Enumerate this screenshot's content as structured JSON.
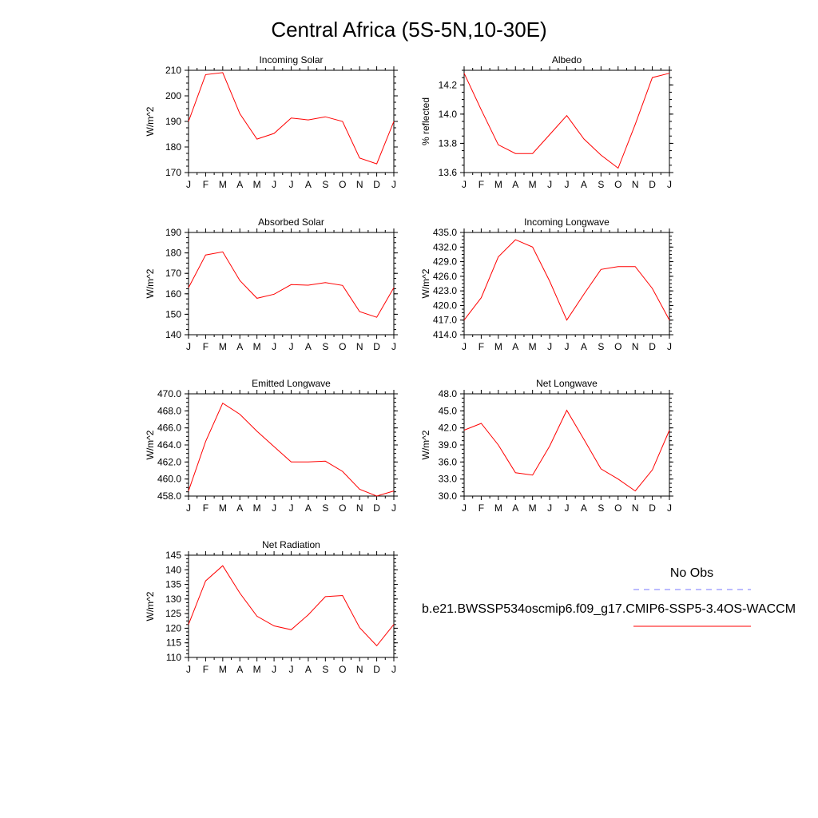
{
  "figure": {
    "title": "Central Africa (5S-5N,10-30E)",
    "series_color": "#ff0000",
    "obs_color": "#7777ff"
  },
  "legend": {
    "obs_label": "No Obs",
    "model_label": "b.e21.BWSSP534oscmip6.f09_g17.CMIP6-SSP5-3.4OS-WACCM"
  },
  "chart_data": [
    {
      "type": "line",
      "title": "Incoming Solar",
      "ylabel": "W/m^2",
      "categories": [
        "J",
        "F",
        "M",
        "A",
        "M",
        "J",
        "J",
        "A",
        "S",
        "O",
        "N",
        "D",
        "J"
      ],
      "values": [
        190.0,
        208.3,
        209.1,
        193.0,
        183.1,
        185.3,
        191.3,
        190.6,
        191.8,
        190.0,
        175.7,
        173.4,
        190.0
      ],
      "ylim": [
        170,
        210
      ],
      "yticks": [
        170,
        180,
        190,
        200,
        210
      ],
      "ytick_labels": [
        "170",
        "180",
        "190",
        "200",
        "210"
      ],
      "grid": false
    },
    {
      "type": "line",
      "title": "Albedo",
      "ylabel": "% reflected",
      "categories": [
        "J",
        "F",
        "M",
        "A",
        "M",
        "J",
        "J",
        "A",
        "S",
        "O",
        "N",
        "D",
        "J"
      ],
      "values": [
        14.28,
        14.03,
        13.79,
        13.73,
        13.73,
        13.86,
        13.99,
        13.83,
        13.72,
        13.63,
        13.93,
        14.25,
        14.28
      ],
      "ylim": [
        13.6,
        14.3
      ],
      "yticks": [
        13.6,
        13.8,
        14.0,
        14.2
      ],
      "ytick_labels": [
        "13.6",
        "13.8",
        "14.0",
        "14.2"
      ],
      "grid": false
    },
    {
      "type": "line",
      "title": "Absorbed Solar",
      "ylabel": "W/m^2",
      "categories": [
        "J",
        "F",
        "M",
        "A",
        "M",
        "J",
        "J",
        "A",
        "S",
        "O",
        "N",
        "D",
        "J"
      ],
      "values": [
        163.0,
        179.0,
        180.5,
        166.5,
        157.8,
        159.8,
        164.5,
        164.2,
        165.5,
        164.1,
        151.3,
        148.5,
        163.0
      ],
      "ylim": [
        140,
        190
      ],
      "yticks": [
        140,
        150,
        160,
        170,
        180,
        190
      ],
      "ytick_labels": [
        "140",
        "150",
        "160",
        "170",
        "180",
        "190"
      ],
      "grid": false
    },
    {
      "type": "line",
      "title": "Incoming Longwave",
      "ylabel": "W/m^2",
      "categories": [
        "J",
        "F",
        "M",
        "A",
        "M",
        "J",
        "J",
        "A",
        "S",
        "O",
        "N",
        "D",
        "J"
      ],
      "values": [
        417.0,
        421.6,
        430.0,
        433.5,
        432.0,
        425.0,
        417.0,
        422.3,
        427.4,
        428.0,
        428.0,
        423.5,
        417.0
      ],
      "ylim": [
        414,
        435
      ],
      "yticks": [
        414,
        417,
        420,
        423,
        426,
        429,
        432,
        435
      ],
      "ytick_labels": [
        "414.0",
        "417.0",
        "420.0",
        "423.0",
        "426.0",
        "429.0",
        "432.0",
        "435.0"
      ],
      "grid": false
    },
    {
      "type": "line",
      "title": "Emitted Longwave",
      "ylabel": "W/m^2",
      "categories": [
        "J",
        "F",
        "M",
        "A",
        "M",
        "J",
        "J",
        "A",
        "S",
        "O",
        "N",
        "D",
        "J"
      ],
      "values": [
        458.6,
        464.4,
        468.9,
        467.6,
        465.6,
        463.8,
        462.0,
        462.0,
        462.1,
        460.9,
        458.8,
        458.0,
        458.6
      ],
      "ylim": [
        458,
        470
      ],
      "yticks": [
        458,
        460,
        462,
        464,
        466,
        468,
        470
      ],
      "ytick_labels": [
        "458.0",
        "460.0",
        "462.0",
        "464.0",
        "466.0",
        "468.0",
        "470.0"
      ],
      "grid": false
    },
    {
      "type": "line",
      "title": "Net Longwave",
      "ylabel": "W/m^2",
      "categories": [
        "J",
        "F",
        "M",
        "A",
        "M",
        "J",
        "J",
        "A",
        "S",
        "O",
        "N",
        "D",
        "J"
      ],
      "values": [
        41.6,
        42.8,
        39.0,
        34.1,
        33.7,
        38.8,
        45.1,
        40.0,
        34.8,
        33.0,
        30.9,
        34.6,
        41.6
      ],
      "ylim": [
        30,
        48
      ],
      "yticks": [
        30,
        33,
        36,
        39,
        42,
        45,
        48
      ],
      "ytick_labels": [
        "30.0",
        "33.0",
        "36.0",
        "39.0",
        "42.0",
        "45.0",
        "48.0"
      ],
      "grid": false
    },
    {
      "type": "line",
      "title": "Net Radiation",
      "ylabel": "W/m^2",
      "categories": [
        "J",
        "F",
        "M",
        "A",
        "M",
        "J",
        "J",
        "A",
        "S",
        "O",
        "N",
        "D",
        "J"
      ],
      "values": [
        121.3,
        136.2,
        141.4,
        132.0,
        124.1,
        120.8,
        119.5,
        124.6,
        130.8,
        131.2,
        120.2,
        114.0,
        121.3
      ],
      "ylim": [
        110,
        145
      ],
      "yticks": [
        110,
        115,
        120,
        125,
        130,
        135,
        140,
        145
      ],
      "ytick_labels": [
        "110",
        "115",
        "120",
        "125",
        "130",
        "135",
        "140",
        "145"
      ],
      "grid": false
    }
  ]
}
